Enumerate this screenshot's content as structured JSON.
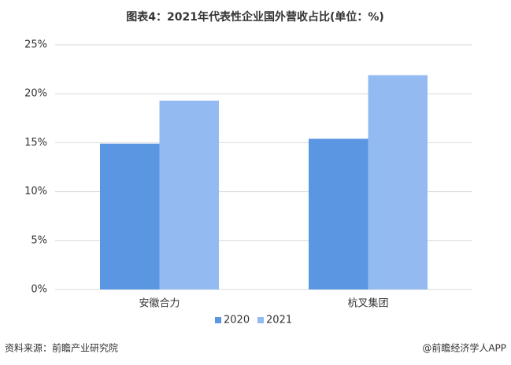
{
  "chart_data": {
    "type": "bar",
    "title": "图表4：2021年代表性企业国外营收占比(单位：%)",
    "categories": [
      "安徽合力",
      "杭叉集团"
    ],
    "series": [
      {
        "name": "2020",
        "color": "#5b96e3",
        "values": [
          14.9,
          15.4
        ]
      },
      {
        "name": "2021",
        "color": "#94bbf1",
        "values": [
          19.3,
          21.9
        ]
      }
    ],
    "ylim": [
      0,
      25
    ],
    "yticks": [
      {
        "value": 0,
        "label": "0%"
      },
      {
        "value": 5,
        "label": "5%"
      },
      {
        "value": 10,
        "label": "10%"
      },
      {
        "value": 15,
        "label": "15%"
      },
      {
        "value": 20,
        "label": "20%"
      },
      {
        "value": 25,
        "label": "25%"
      }
    ],
    "grid": true,
    "legend": "bottom",
    "source": "资料来源：前瞻产业研究院",
    "credit": "@前瞻经济学人APP"
  }
}
